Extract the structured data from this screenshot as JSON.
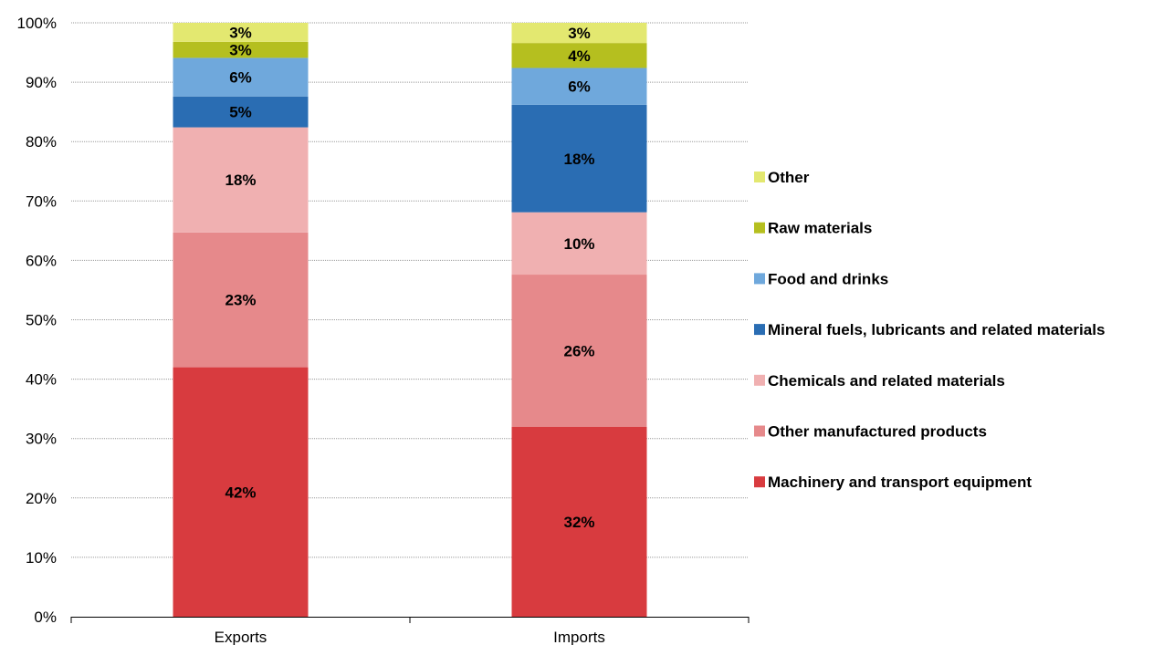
{
  "chart_data": {
    "type": "bar",
    "stacked": true,
    "percent_stacked": true,
    "categories": [
      "Exports",
      "Imports"
    ],
    "series": [
      {
        "name": "Machinery and transport equipment",
        "values": [
          42,
          32
        ],
        "labels": [
          "42%",
          "32%"
        ],
        "color": "#d83b3f"
      },
      {
        "name": "Other manufactured products",
        "values": [
          22.7,
          25.6
        ],
        "labels": [
          "23%",
          "26%"
        ],
        "color": "#e6898b"
      },
      {
        "name": "Chemicals and related materials",
        "values": [
          17.7,
          10.5
        ],
        "labels": [
          "18%",
          "10%"
        ],
        "color": "#f0b0b1"
      },
      {
        "name": "Mineral fuels, lubricants and related materials",
        "values": [
          5.2,
          18.1
        ],
        "labels": [
          "5%",
          "18%"
        ],
        "color": "#2a6db3"
      },
      {
        "name": "Food and drinks",
        "values": [
          6.5,
          6.2
        ],
        "labels": [
          "6%",
          "6%"
        ],
        "color": "#6fa8dc"
      },
      {
        "name": "Raw materials",
        "values": [
          2.7,
          4.2
        ],
        "labels": [
          "3%",
          "4%"
        ],
        "color": "#b5bf1f"
      },
      {
        "name": "Other",
        "values": [
          3.2,
          3.4
        ],
        "labels": [
          "3%",
          "3%"
        ],
        "color": "#e3e870"
      }
    ],
    "y_ticks": [
      "0%",
      "10%",
      "20%",
      "30%",
      "40%",
      "50%",
      "60%",
      "70%",
      "80%",
      "90%",
      "100%"
    ],
    "ylim": [
      0,
      100
    ],
    "grid": true,
    "legend_position": "right",
    "title": "",
    "xlabel": "",
    "ylabel": ""
  }
}
